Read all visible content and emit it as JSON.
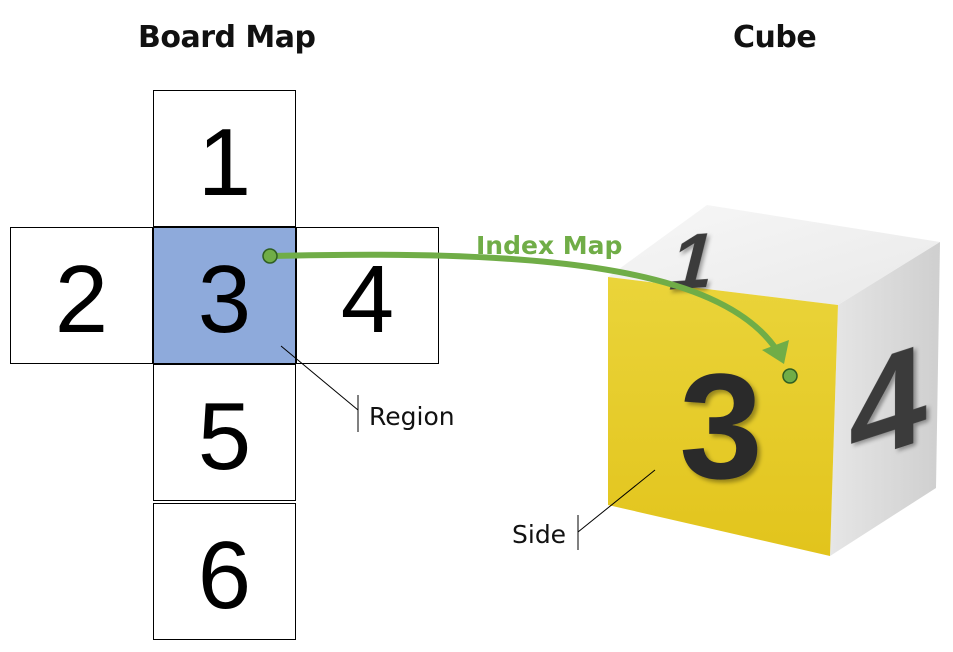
{
  "board": {
    "title": "Board Map",
    "cells": {
      "c1": "1",
      "c2": "2",
      "c3": "3",
      "c4": "4",
      "c5": "5",
      "c6": "6"
    },
    "active_color": "#8eaadb",
    "region_label": "Region"
  },
  "cube": {
    "title": "Cube",
    "faces": {
      "top": "1",
      "front": "3",
      "right": "4"
    },
    "front_color": "#e8cc2c",
    "side_label": "Side"
  },
  "index_map": {
    "label": "Index Map",
    "color": "#70ad47"
  }
}
